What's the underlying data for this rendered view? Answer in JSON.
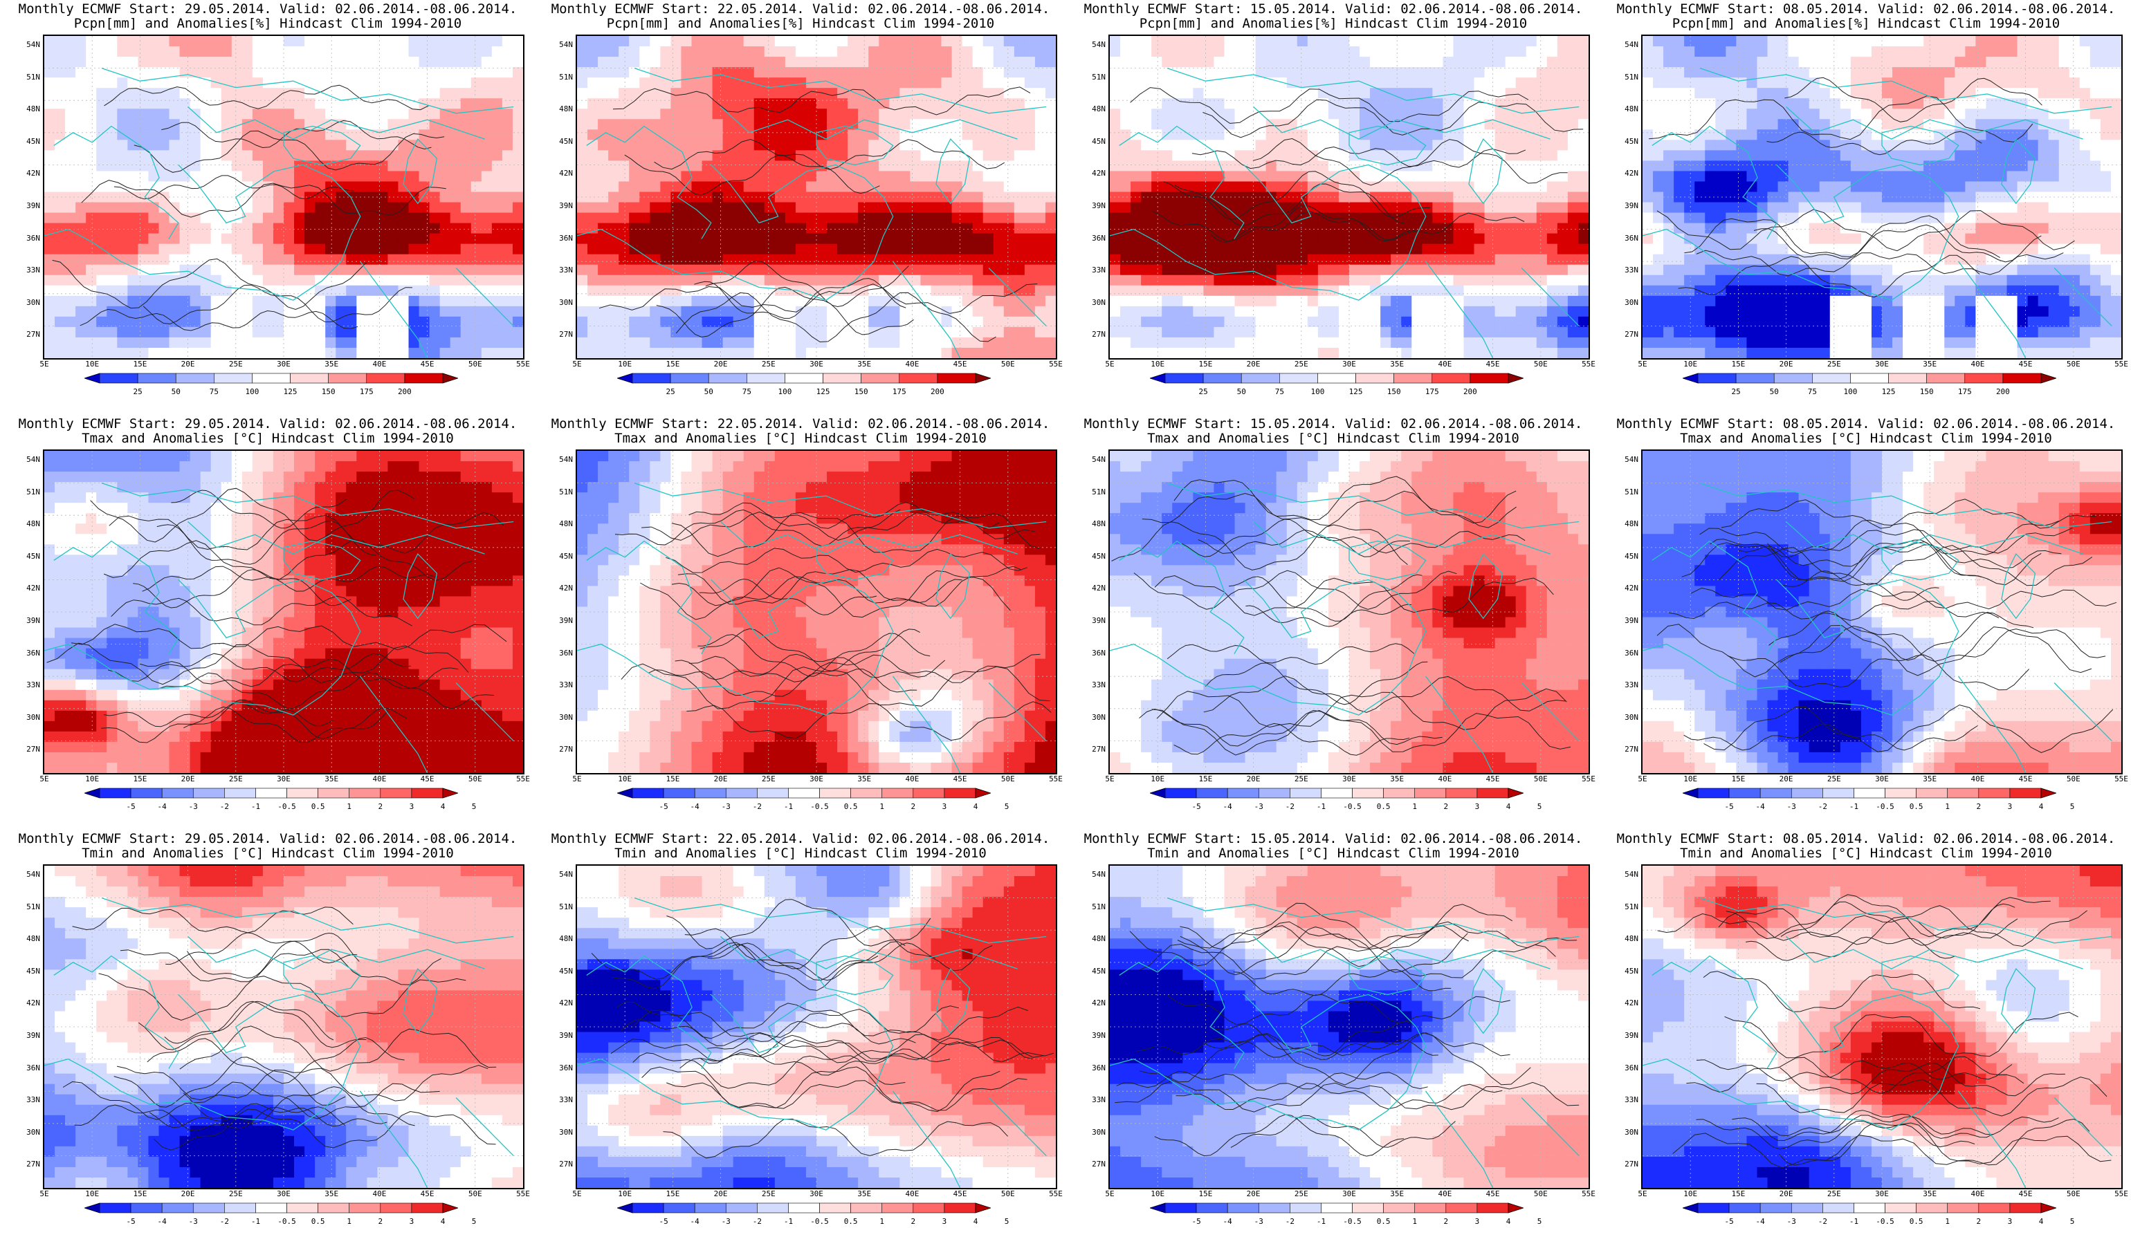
{
  "panels": [
    {
      "title1": "Monthly ECMWF Start: 29.05.2014. Valid: 02.06.2014.-08.06.2014.",
      "title2": "Pcpn[mm] and Anomalies[%] Hindcast Clim 1994-2010",
      "var": "precip",
      "seed": 11
    },
    {
      "title1": "Monthly ECMWF Start: 22.05.2014. Valid: 02.06.2014.-08.06.2014.",
      "title2": "Pcpn[mm] and Anomalies[%] Hindcast Clim 1994-2010",
      "var": "precip",
      "seed": 23
    },
    {
      "title1": "Monthly ECMWF Start: 15.05.2014. Valid: 02.06.2014.-08.06.2014.",
      "title2": "Pcpn[mm] and Anomalies[%] Hindcast Clim 1994-2010",
      "var": "precip",
      "seed": 37
    },
    {
      "title1": "Monthly ECMWF Start: 08.05.2014. Valid: 02.06.2014.-08.06.2014.",
      "title2": "Pcpn[mm] and Anomalies[%] Hindcast Clim 1994-2010",
      "var": "precip",
      "seed": 41
    },
    {
      "title1": "Monthly ECMWF Start: 29.05.2014. Valid: 02.06.2014.-08.06.2014.",
      "title2": "Tmax and Anomalies [°C] Hindcast Clim 1994-2010",
      "var": "tmax",
      "seed": 53
    },
    {
      "title1": "Monthly ECMWF Start: 22.05.2014. Valid: 02.06.2014.-08.06.2014.",
      "title2": "Tmax and Anomalies [°C] Hindcast Clim 1994-2010",
      "var": "tmax",
      "seed": 67
    },
    {
      "title1": "Monthly ECMWF Start: 15.05.2014. Valid: 02.06.2014.-08.06.2014.",
      "title2": "Tmax and Anomalies [°C] Hindcast Clim 1994-2010",
      "var": "tmax",
      "seed": 71
    },
    {
      "title1": "Monthly ECMWF Start: 08.05.2014. Valid: 02.06.2014.-08.06.2014.",
      "title2": "Tmax and Anomalies [°C] Hindcast Clim 1994-2010",
      "var": "tmax",
      "seed": 83
    },
    {
      "title1": "Monthly ECMWF Start: 29.05.2014. Valid: 02.06.2014.-08.06.2014.",
      "title2": "Tmin and Anomalies [°C] Hindcast Clim 1994-2010",
      "var": "tmin",
      "seed": 97
    },
    {
      "title1": "Monthly ECMWF Start: 22.05.2014. Valid: 02.06.2014.-08.06.2014.",
      "title2": "Tmin and Anomalies [°C] Hindcast Clim 1994-2010",
      "var": "tmin",
      "seed": 101
    },
    {
      "title1": "Monthly ECMWF Start: 15.05.2014. Valid: 02.06.2014.-08.06.2014.",
      "title2": "Tmin and Anomalies [°C] Hindcast Clim 1994-2010",
      "var": "tmin",
      "seed": 113
    },
    {
      "title1": "Monthly ECMWF Start: 08.05.2014. Valid: 02.06.2014.-08.06.2014.",
      "title2": "Tmin and Anomalies [°C] Hindcast Clim 1994-2010",
      "var": "tmin",
      "seed": 127
    }
  ],
  "axes": {
    "lon_labels": [
      "5E",
      "10E",
      "15E",
      "20E",
      "25E",
      "30E",
      "35E",
      "40E",
      "45E",
      "50E",
      "55E"
    ],
    "lat_labels": [
      "54N",
      "51N",
      "48N",
      "45N",
      "42N",
      "39N",
      "36N",
      "33N",
      "30N",
      "27N"
    ],
    "lon_range": [
      5,
      55
    ],
    "lat_range": [
      25,
      55
    ]
  },
  "colorbars": {
    "precip": {
      "labels": [
        "25",
        "50",
        "75",
        "100",
        "125",
        "150",
        "175",
        "200"
      ],
      "colors": [
        "#0000c8",
        "#2a45ff",
        "#6a86ff",
        "#a9b8ff",
        "#dde3ff",
        "#ffffff",
        "#ffd9d9",
        "#ff9a9a",
        "#ff4a4a",
        "#d80000",
        "#8b0000"
      ]
    },
    "temp": {
      "labels": [
        "-5",
        "-4",
        "-3",
        "-2",
        "-1",
        "-0.5",
        "0.5",
        "1",
        "2",
        "3",
        "4",
        "5"
      ],
      "colors": [
        "#0000b4",
        "#1a2cff",
        "#4a66ff",
        "#7a92ff",
        "#a7b6ff",
        "#d3dbff",
        "#ffffff",
        "#ffdede",
        "#ffbcbc",
        "#ff9494",
        "#ff6666",
        "#f02a2a",
        "#b40000"
      ]
    }
  },
  "colors": {
    "coast": "#22c4c4",
    "contour": "#222222",
    "grid": "#b8b8b8"
  }
}
